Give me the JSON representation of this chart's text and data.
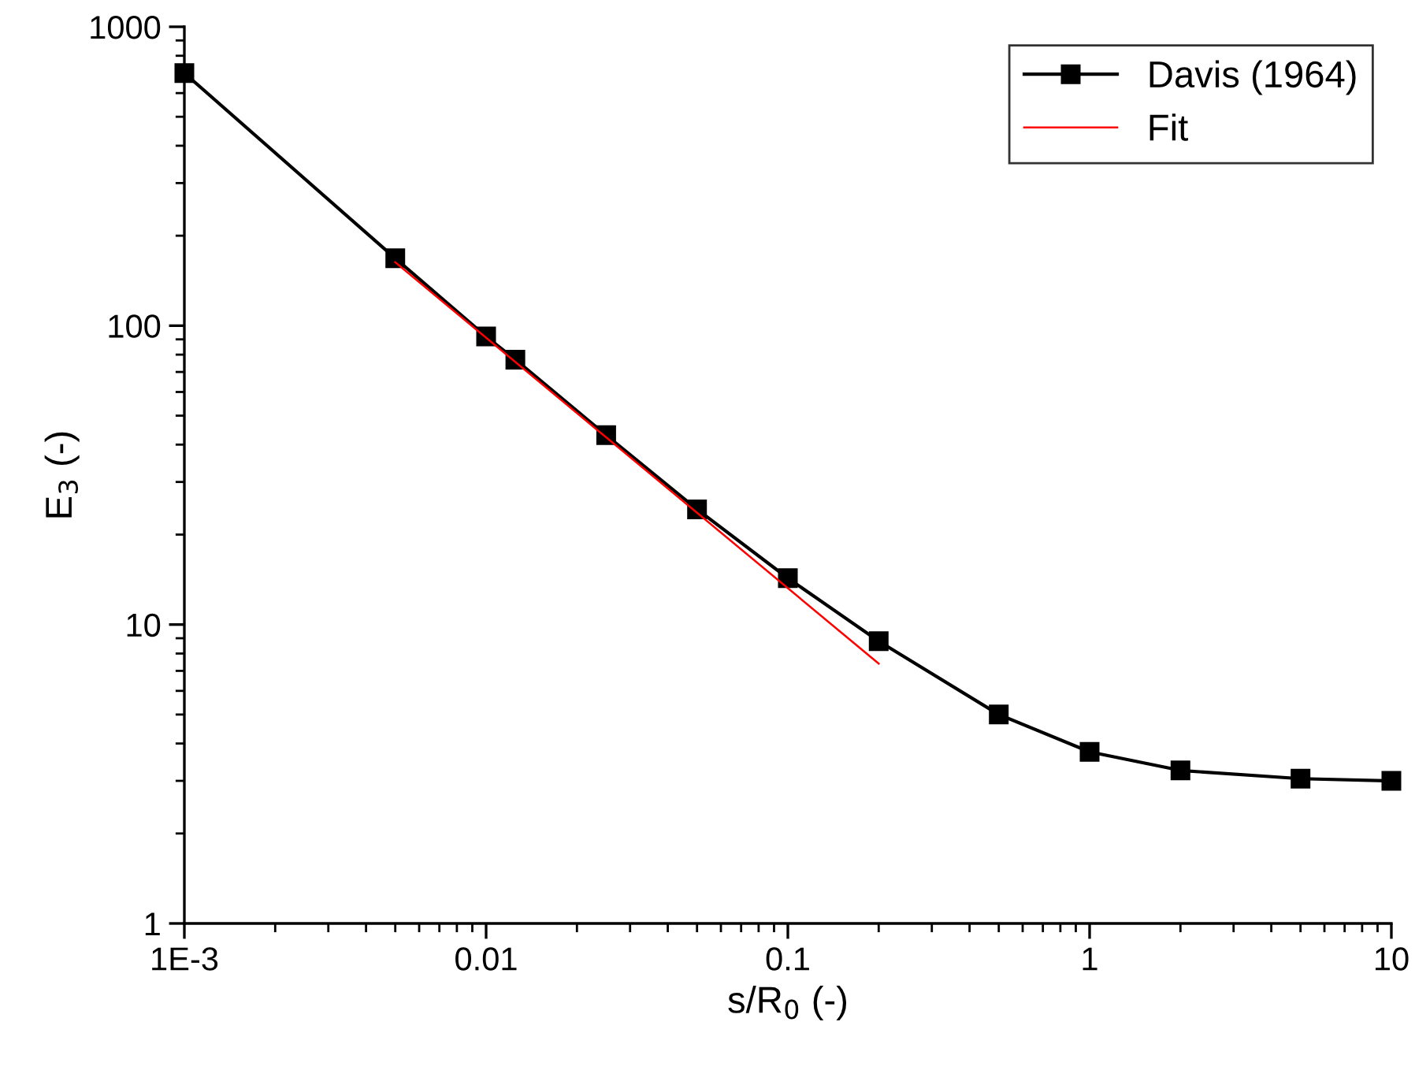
{
  "chart_data": {
    "type": "line",
    "xlabel": "s/R$_{0}$ (-)",
    "ylabel": "E$_{3}$ (-)",
    "log": "xy",
    "xlim": [
      0.001,
      10
    ],
    "ylim": [
      1,
      1000
    ],
    "xticks": [
      {
        "value": 0.001,
        "label": "1E-3"
      },
      0.01,
      0.1,
      1,
      10
    ],
    "yticks": [
      1,
      10,
      100,
      1000
    ],
    "grid": false,
    "legend": "top right",
    "series": [
      {
        "name": "Davis (1964)",
        "color": "#000000",
        "marker": "square",
        "line_style": "solid",
        "x": [
          0.001,
          0.005,
          0.01,
          0.0125,
          0.025,
          0.05,
          0.1,
          0.2,
          0.5,
          1,
          2,
          5,
          10
        ],
        "values": [
          700,
          168,
          92,
          77,
          43,
          24.3,
          14.3,
          8.8,
          5.0,
          3.75,
          3.25,
          3.05,
          3.0
        ]
      },
      {
        "name": "Fit",
        "color": "#ff0000",
        "marker": "none",
        "line_style": "solid",
        "x": [
          0.005,
          0.2
        ],
        "values": [
          163,
          7.4
        ]
      }
    ]
  }
}
